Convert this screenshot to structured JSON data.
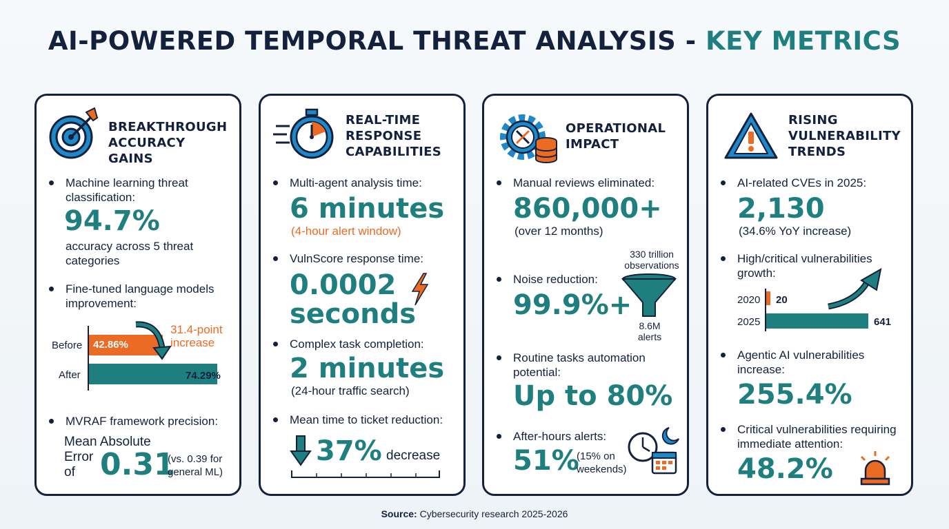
{
  "header": {
    "title_main": "AI-POWERED TEMPORAL THREAT ANALYSIS - ",
    "title_accent": "KEY METRICS"
  },
  "colors": {
    "navy": "#14213d",
    "teal": "#1f7f7f",
    "orange": "#ec6b24"
  },
  "cards": [
    {
      "title_lines": [
        "BREAKTHROUGH",
        "ACCURACY",
        "GAINS"
      ],
      "icon": "target-arrow-icon",
      "items": [
        {
          "label": "Machine learning threat classification:",
          "value": "94.7%",
          "sub": "accuracy across 5 threat categories"
        },
        {
          "label": "Fine-tuned language models improvement:"
        },
        {
          "label": "MVRAF framework precision:",
          "pre_lines": [
            "Mean Absolute",
            "Error",
            "of"
          ],
          "value": "0.31",
          "note": "(vs. 0.39 for general ML)"
        }
      ],
      "bar_chart": {
        "bars": [
          {
            "name": "Before",
            "value": 42.86,
            "display": "42.86%",
            "color": "#ec6b24"
          },
          {
            "name": "After",
            "value": 74.29,
            "display": "74.29%",
            "color": "#1f7f7f"
          }
        ],
        "annotation": "31.4-point increase"
      }
    },
    {
      "title_lines": [
        "REAL-TIME",
        "RESPONSE",
        "CAPABILITIES"
      ],
      "icon": "stopwatch-icon",
      "items": [
        {
          "label": "Multi-agent analysis time:",
          "value": "6 minutes",
          "sub": "(4-hour alert window)"
        },
        {
          "label": "VulnScore response time:",
          "value_lines": [
            "0.0002",
            "seconds"
          ],
          "icon": "lightning-icon"
        },
        {
          "label": "Complex task completion:",
          "value": "2 minutes",
          "sub": "(24-hour traffic search)"
        },
        {
          "label": "Mean time to ticket reduction:",
          "value": "37%",
          "suffix": "decrease",
          "icon": "down-arrow-icon"
        }
      ]
    },
    {
      "title_lines": [
        "OPERATIONAL",
        "IMPACT"
      ],
      "icon": "gear-tools-database-icon",
      "items": [
        {
          "label": "Manual reviews eliminated:",
          "value": "860,000+",
          "sub": "(over 12 months)"
        },
        {
          "label": "Noise reduction:",
          "value": "99.9%+",
          "funnel_top": "330 trillion observations",
          "funnel_bottom": "8.6M alerts"
        },
        {
          "label": "Routine tasks automation potential:",
          "value": "Up to 80%"
        },
        {
          "label": "After-hours alerts:",
          "value": "51%",
          "note": "(15% on weekends)",
          "icon": "clock-calendar-icon"
        }
      ]
    },
    {
      "title_lines": [
        "RISING",
        "VULNERABILITY",
        "TRENDS"
      ],
      "icon": "warning-triangle-icon",
      "items": [
        {
          "label": "AI-related CVEs in 2025:",
          "value": "2,130",
          "sub": "(34.6% YoY increase)"
        },
        {
          "label": "High/critical vulnerabilities growth:"
        },
        {
          "label": "Agentic AI vulnerabilities increase:",
          "value": "255.4%"
        },
        {
          "label": "Critical vulnerabilities requiring immediate attention:",
          "value": "48.2%",
          "icon": "siren-icon"
        }
      ],
      "bar_chart": {
        "bars": [
          {
            "name": "2020",
            "value": 20,
            "display": "20",
            "color": "#ec6b24"
          },
          {
            "name": "2025",
            "value": 641,
            "display": "641",
            "color": "#1f7f7f"
          }
        ]
      }
    }
  ],
  "footer": {
    "source_label": "Source:",
    "source_text": " Cybersecurity research 2025-2026"
  }
}
